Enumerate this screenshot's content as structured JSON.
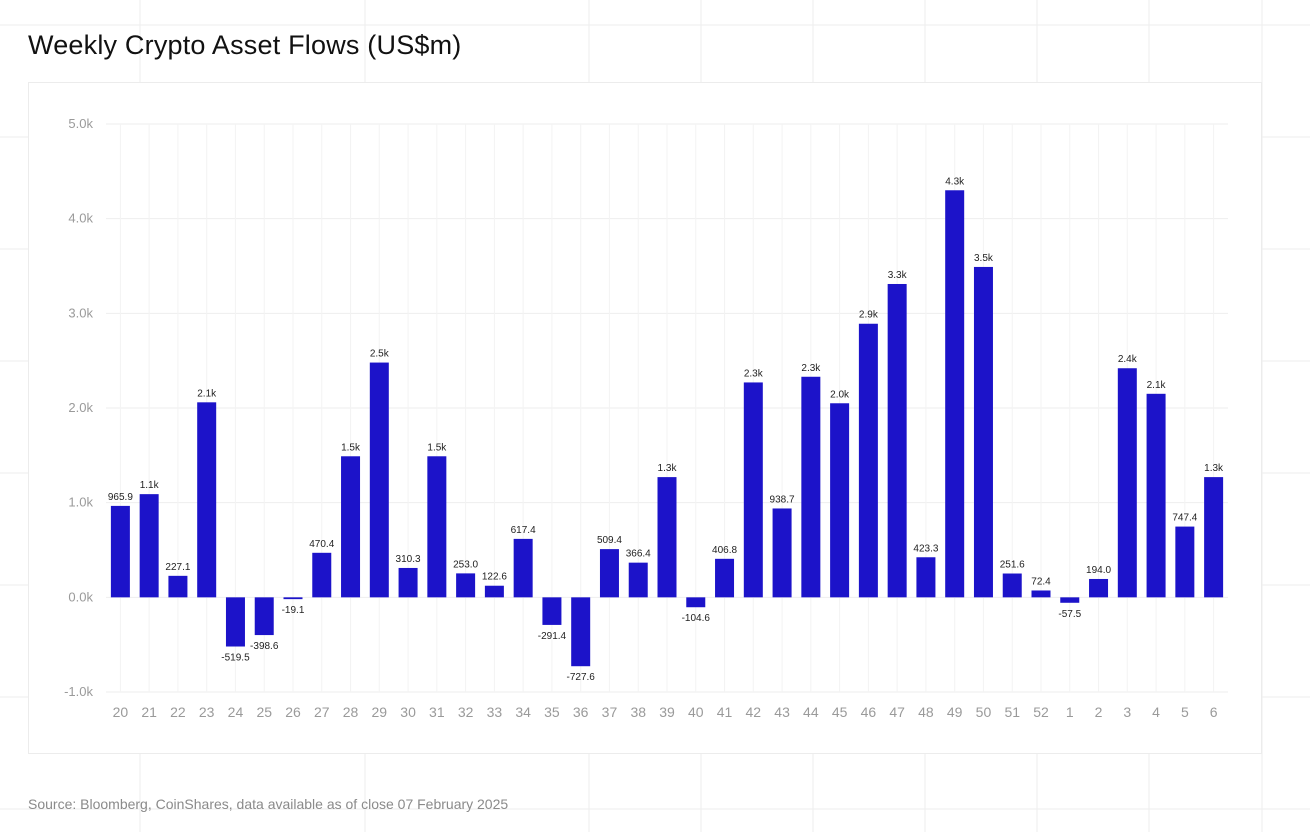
{
  "page_title": "Weekly Crypto Asset Flows (US$m)",
  "source": "Source: Bloomberg, CoinShares, data available as of close 07 February 2025",
  "colors": {
    "bar": "#1c13c9",
    "grid": "#eeeeee",
    "axis_text": "#9a9a9a",
    "label_text": "#222222"
  },
  "chart_data": {
    "type": "bar",
    "title": "Weekly Crypto Asset Flows (US$m)",
    "xlabel": "",
    "ylabel": "",
    "ylim": [
      -1000,
      5000
    ],
    "yticks": [
      -1000,
      0,
      1000,
      2000,
      3000,
      4000,
      5000
    ],
    "ytick_labels": [
      "-1.0k",
      "0.0k",
      "1.0k",
      "2.0k",
      "3.0k",
      "4.0k",
      "5.0k"
    ],
    "grid": true,
    "categories": [
      "20",
      "21",
      "22",
      "23",
      "24",
      "25",
      "26",
      "27",
      "28",
      "29",
      "30",
      "31",
      "32",
      "33",
      "34",
      "35",
      "36",
      "37",
      "38",
      "39",
      "40",
      "41",
      "42",
      "43",
      "44",
      "45",
      "46",
      "47",
      "48",
      "49",
      "50",
      "51",
      "52",
      "1",
      "2",
      "3",
      "4",
      "5",
      "6"
    ],
    "values": [
      965.9,
      1090,
      227.1,
      2060,
      -519.5,
      -398.6,
      -19.1,
      470.4,
      1490,
      2480,
      310.3,
      1490,
      253.0,
      122.6,
      617.4,
      -291.4,
      -727.6,
      509.4,
      366.4,
      1270,
      -104.6,
      406.8,
      2270,
      938.7,
      2330,
      2050,
      2890,
      3310,
      423.3,
      4300,
      3490,
      251.6,
      72.4,
      -57.5,
      194.0,
      2420,
      2150,
      747.4,
      1270
    ],
    "value_labels": [
      "965.9",
      "1.1k",
      "227.1",
      "2.1k",
      "-519.5",
      "-398.6",
      "-19.1",
      "470.4",
      "1.5k",
      "2.5k",
      "310.3",
      "1.5k",
      "253.0",
      "122.6",
      "617.4",
      "-291.4",
      "-727.6",
      "509.4",
      "366.4",
      "1.3k",
      "-104.6",
      "406.8",
      "2.3k",
      "938.7",
      "2.3k",
      "2.0k",
      "2.9k",
      "3.3k",
      "423.3",
      "4.3k",
      "3.5k",
      "251.6",
      "72.4",
      "-57.5",
      "194.0",
      "2.4k",
      "2.1k",
      "747.4",
      "1.3k"
    ]
  }
}
